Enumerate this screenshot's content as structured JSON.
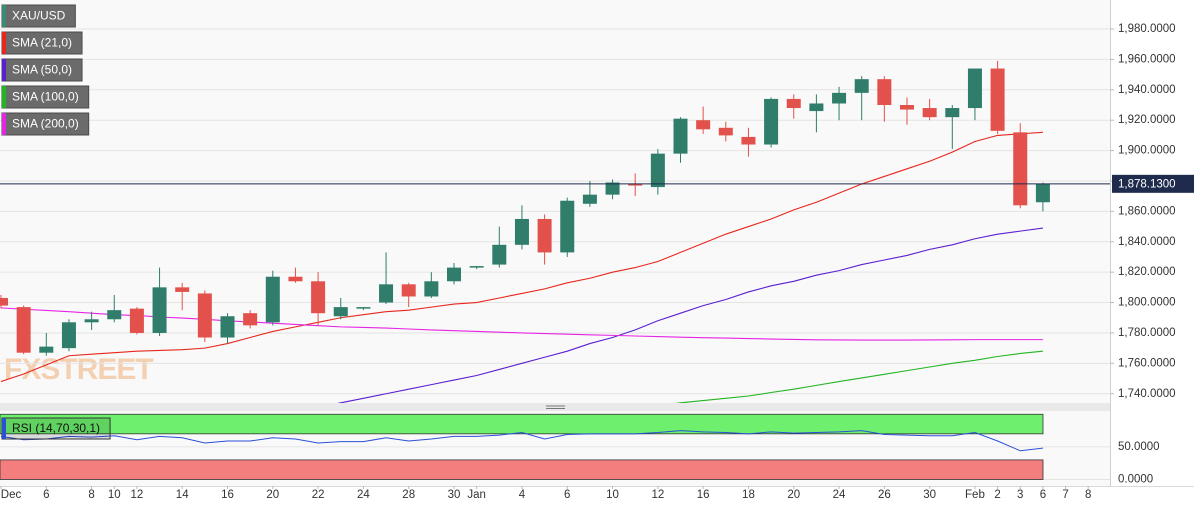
{
  "chart_data": {
    "type": "candlestick",
    "categories": [
      "Dec",
      null,
      "6",
      null,
      "8",
      "10",
      "12",
      null,
      "14",
      null,
      "16",
      null,
      "20",
      null,
      "22",
      null,
      "24",
      null,
      "28",
      null,
      "30",
      "Jan",
      null,
      "4",
      null,
      "6",
      null,
      "10",
      null,
      "12",
      null,
      "16",
      null,
      "18",
      null,
      "20",
      null,
      "24",
      null,
      "26",
      null,
      "30",
      null,
      "Feb",
      "2",
      "3",
      "6",
      "7",
      "8"
    ],
    "series": [
      {
        "name": "XAU/USD",
        "type": "candlestick",
        "up_color": "#2f7d6a",
        "down_color": "#e2514b",
        "legend_color": "#3a8a75",
        "open": [
          1803,
          1797,
          1767,
          1770,
          1787,
          1789,
          1796,
          1780,
          1810,
          1806,
          1777,
          1793,
          1787,
          1817,
          1814,
          1791,
          1796,
          1800,
          1812,
          1804,
          1814,
          1823,
          1825,
          1838,
          1855,
          1833,
          1865,
          1871,
          1878,
          1876,
          1898,
          1920,
          1915,
          1909,
          1904,
          1934,
          1926,
          1931,
          1938,
          1947,
          1930,
          1928,
          1922,
          1928,
          1954,
          1912,
          1866,
          null,
          null
        ],
        "high": [
          1805,
          1798,
          1780,
          1789,
          1794,
          1805,
          1797,
          1823,
          1813,
          1808,
          1793,
          1795,
          1821,
          1823,
          1820,
          1803,
          1797,
          1833,
          1813,
          1820,
          1826,
          1824,
          1850,
          1864,
          1858,
          1869,
          1880,
          1881,
          1885,
          1901,
          1922,
          1929,
          1919,
          1915,
          1935,
          1937,
          1937,
          1942,
          1949,
          1949,
          1935,
          1934,
          1930,
          1954,
          1959,
          1918,
          1879,
          null,
          null
        ],
        "low": [
          1796,
          1766,
          1765,
          1768,
          1782,
          1787,
          1779,
          1778,
          1795,
          1774,
          1773,
          1783,
          1785,
          1813,
          1785,
          1789,
          1795,
          1799,
          1797,
          1803,
          1812,
          1822,
          1823,
          1835,
          1825,
          1830,
          1863,
          1868,
          1870,
          1871,
          1892,
          1911,
          1906,
          1896,
          1902,
          1921,
          1912,
          1920,
          1920,
          1919,
          1917,
          1920,
          1901,
          1920,
          1911,
          1862,
          1860,
          null,
          null
        ],
        "close": [
          1798,
          1767,
          1771,
          1787,
          1789,
          1795,
          1780,
          1810,
          1807,
          1777,
          1791,
          1785,
          1817,
          1814,
          1793,
          1797,
          1797,
          1812,
          1804,
          1814,
          1823,
          1824,
          1838,
          1855,
          1833,
          1867,
          1871,
          1879,
          1877,
          1898,
          1921,
          1914,
          1910,
          1904,
          1934,
          1928,
          1931,
          1938,
          1947,
          1930,
          1927,
          1922,
          1928,
          1954,
          1913,
          1864,
          1878.13,
          null,
          null
        ]
      },
      {
        "name": "SMA (21,0)",
        "type": "line",
        "color": "#e8261c",
        "values": [
          1748,
          1753,
          1759,
          1765,
          1766,
          1767,
          1768,
          1768.5,
          1769,
          1770,
          1773,
          1777,
          1781,
          1784,
          1787,
          1790,
          1792,
          1794,
          1795,
          1797,
          1799,
          1800,
          1803,
          1806,
          1809,
          1813,
          1816,
          1820,
          1823,
          1827,
          1833,
          1839,
          1845,
          1850,
          1855,
          1861,
          1866,
          1872,
          1878,
          1883,
          1888,
          1893,
          1899,
          1906,
          1910,
          1911,
          1912,
          null,
          null
        ]
      },
      {
        "name": "SMA (50,0)",
        "type": "line",
        "color": "#5a1fd1",
        "values": [
          null,
          null,
          null,
          null,
          null,
          null,
          null,
          null,
          null,
          null,
          null,
          null,
          null,
          null,
          1731,
          1734,
          1737,
          1740,
          1743,
          1746,
          1749,
          1752,
          1756,
          1760,
          1764,
          1768,
          1773,
          1777,
          1782,
          1788,
          1793,
          1798,
          1802,
          1807,
          1811,
          1814,
          1818,
          1821,
          1825,
          1828,
          1831,
          1835,
          1838,
          1842,
          1845,
          1847,
          1849,
          null,
          null
        ]
      },
      {
        "name": "SMA (100,0)",
        "type": "line",
        "color": "#22b522",
        "values": [
          null,
          null,
          null,
          null,
          null,
          null,
          null,
          null,
          null,
          null,
          null,
          null,
          null,
          null,
          null,
          null,
          null,
          null,
          null,
          null,
          null,
          null,
          null,
          null,
          null,
          null,
          null,
          null,
          null,
          1732,
          1734,
          1735.5,
          1737,
          1738.5,
          1740.8,
          1743,
          1745.5,
          1748,
          1750.4,
          1752.8,
          1755.2,
          1757.6,
          1760,
          1762,
          1764.5,
          1766.5,
          1768,
          null,
          null
        ]
      },
      {
        "name": "SMA (200,0)",
        "type": "line",
        "color": "#e524e5",
        "values": [
          1796.5,
          1795.6,
          1794.8,
          1794,
          1793,
          1792,
          1791.5,
          1790.5,
          1789.8,
          1789,
          1788,
          1787.2,
          1786.4,
          1785.6,
          1784.8,
          1784,
          1783.6,
          1783.2,
          1782.6,
          1782,
          1781.5,
          1781,
          1780.5,
          1780,
          1779.6,
          1779.2,
          1778.8,
          1778.4,
          1778,
          1777.6,
          1777.2,
          1776.9,
          1776.6,
          1776.3,
          1776,
          1775.7,
          1775.5,
          1775.4,
          1775.3,
          1775.3,
          1775.3,
          1775.4,
          1775.5,
          1775.6,
          1775.6,
          1775.6,
          1775.6,
          null,
          null
        ]
      }
    ],
    "ylim": [
      1733.9,
      1999.1
    ],
    "yticks": [
      {
        "value": 1740,
        "label": "1,740.0000"
      },
      {
        "value": 1760,
        "label": "1,760.0000"
      },
      {
        "value": 1780,
        "label": "1,780.0000"
      },
      {
        "value": 1800,
        "label": "1,800.0000"
      },
      {
        "value": 1820,
        "label": "1,820.0000"
      },
      {
        "value": 1840,
        "label": "1,840.0000"
      },
      {
        "value": 1860,
        "label": "1,860.0000"
      },
      {
        "value": 1880,
        "label": "1,880.0000"
      },
      {
        "value": 1900,
        "label": "1,900.0000"
      },
      {
        "value": 1920,
        "label": "1,920.0000"
      },
      {
        "value": 1940,
        "label": "1,940.0000"
      },
      {
        "value": 1960,
        "label": "1,960.0000"
      },
      {
        "value": 1980,
        "label": "1,980.0000"
      }
    ],
    "grid": true,
    "last_price": {
      "value": 1878.13,
      "label": "1,878.1300",
      "color": "#1e2b4d"
    },
    "watermark": "FXSTREET",
    "rsi": {
      "name": "RSI (14,70,30,1)",
      "color": "#2b4fd8",
      "values": [
        66,
        61,
        62,
        66,
        65,
        67,
        61,
        66,
        64,
        56,
        59,
        59,
        64,
        62,
        56,
        58,
        58,
        64,
        59,
        62,
        66,
        66,
        68,
        72,
        62,
        69,
        70,
        70,
        70,
        72,
        75,
        73,
        72,
        70,
        73,
        71,
        72,
        73,
        75,
        69,
        68,
        67,
        67,
        72,
        59,
        44,
        48,
        null,
        null
      ],
      "ylim": [
        -10,
        105
      ],
      "yticks": [
        {
          "value": 0,
          "label": "0.0000"
        },
        {
          "value": 50,
          "label": "50.0000"
        }
      ],
      "overbought": 70,
      "oversold": 30,
      "overbought_color": "#6ef06e",
      "oversold_color": "#f47e7e"
    }
  }
}
